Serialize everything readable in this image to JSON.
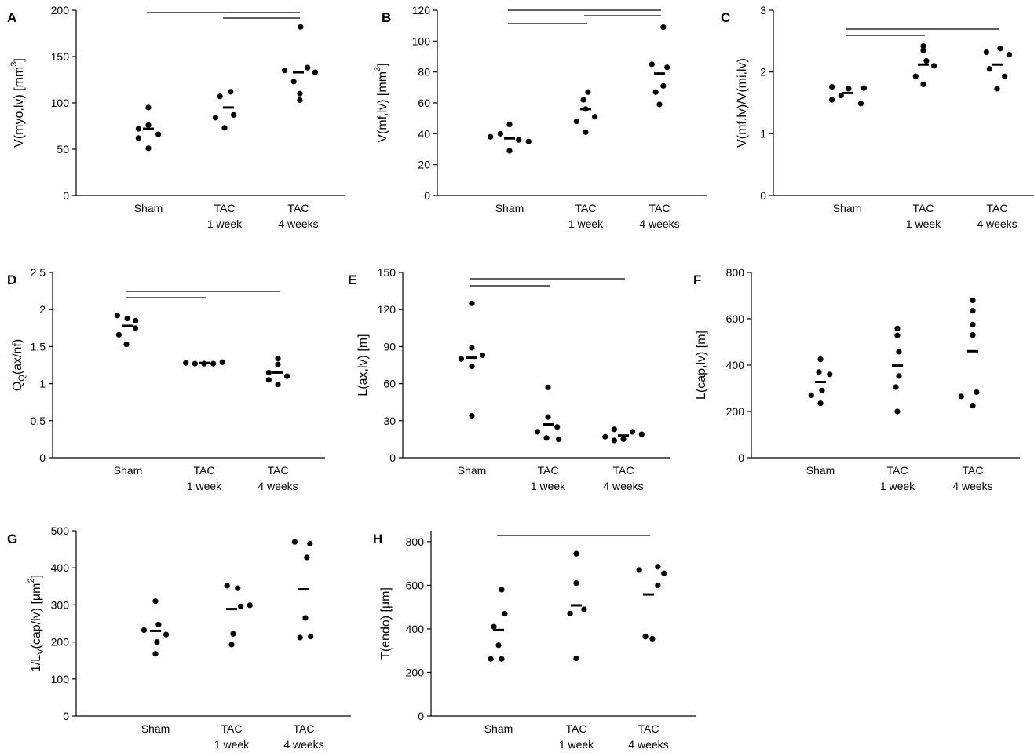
{
  "figure": {
    "categories": [
      [
        "Sham"
      ],
      [
        "TAC",
        "1 week"
      ],
      [
        "TAC",
        "4 weeks"
      ]
    ]
  },
  "chart_data": [
    {
      "type": "scatter",
      "panel": "A",
      "ylabel": [
        {
          "t": "V(myo,lv) [mm"
        },
        {
          "t": "3",
          "sup": true
        },
        {
          "t": "]"
        }
      ],
      "ylim": [
        0,
        200
      ],
      "yticks": [
        "0",
        "50",
        "100",
        "150",
        "200"
      ],
      "series": [
        {
          "values": [
            95,
            76,
            72,
            66,
            62,
            51
          ],
          "mean": 72,
          "x_offsets": [
            0,
            0,
            -0.13,
            0.13,
            -0.13,
            0
          ]
        },
        {
          "values": [
            112,
            107,
            87,
            84,
            73
          ],
          "mean": 95,
          "x_offsets": [
            0.08,
            -0.06,
            0.12,
            -0.12,
            0
          ],
          "mean_offset": 0.05
        },
        {
          "values": [
            182,
            138,
            135,
            133,
            123,
            110,
            103
          ],
          "mean": 133,
          "x_offsets": [
            0.03,
            0.12,
            -0.18,
            0.22,
            -0.06,
            0.02,
            0.02
          ]
        }
      ],
      "significance": [
        [
          0,
          2
        ],
        [
          1,
          2
        ]
      ]
    },
    {
      "type": "scatter",
      "panel": "B",
      "ylabel": [
        {
          "t": "V(mf,lv) [mm"
        },
        {
          "t": "3",
          "sup": true
        },
        {
          "t": "]"
        }
      ],
      "ylim": [
        0,
        120
      ],
      "yticks": [
        "0",
        "20",
        "40",
        "60",
        "80",
        "100",
        "120"
      ],
      "series": [
        {
          "values": [
            46,
            40,
            38,
            36,
            35,
            29
          ],
          "mean": 37,
          "x_offsets": [
            0,
            -0.12,
            -0.25,
            0.12,
            0.25,
            0
          ]
        },
        {
          "values": [
            67,
            62,
            56,
            51,
            48,
            41
          ],
          "mean": 56,
          "x_offsets": [
            0.03,
            -0.03,
            0,
            0.12,
            -0.12,
            0
          ]
        },
        {
          "values": [
            109,
            85,
            83,
            71,
            67,
            59
          ],
          "mean": 79,
          "x_offsets": [
            0.05,
            -0.1,
            0.1,
            0.05,
            -0.05,
            0
          ]
        }
      ],
      "significance": [
        [
          0,
          2
        ],
        [
          1,
          2
        ],
        [
          0,
          1
        ]
      ]
    },
    {
      "type": "scatter",
      "panel": "C",
      "ylabel": [
        {
          "t": "V(mf,lv)/V(mi,lv)"
        }
      ],
      "ylim": [
        0,
        3
      ],
      "yticks": [
        "0",
        "1",
        "2",
        "3"
      ],
      "series": [
        {
          "values": [
            1.76,
            1.74,
            1.73,
            1.62,
            1.55,
            1.49
          ],
          "mean": 1.66,
          "x_offsets": [
            -0.2,
            0.22,
            0.02,
            -0.08,
            -0.2,
            0.18
          ]
        },
        {
          "values": [
            2.42,
            2.35,
            2.18,
            2.1,
            1.93,
            1.8
          ],
          "mean": 2.12,
          "x_offsets": [
            0,
            0,
            0.04,
            0.14,
            -0.1,
            0
          ]
        },
        {
          "values": [
            2.38,
            2.32,
            2.28,
            2.05,
            1.93,
            1.73
          ],
          "mean": 2.12,
          "x_offsets": [
            0.04,
            -0.14,
            0.16,
            -0.1,
            0.1,
            0
          ]
        }
      ],
      "significance": [
        [
          0,
          2
        ],
        [
          0,
          1
        ]
      ]
    },
    {
      "type": "scatter",
      "panel": "D",
      "ylabel": [
        {
          "t": "Q"
        },
        {
          "t": "Q",
          "sub": true
        },
        {
          "t": "(ax/nf)"
        }
      ],
      "ylim": [
        0,
        2.5
      ],
      "yticks": [
        "0",
        "0.5",
        "1",
        "1.5",
        "2",
        "2.5"
      ],
      "series": [
        {
          "values": [
            1.92,
            1.88,
            1.85,
            1.75,
            1.66,
            1.53
          ],
          "mean": 1.78,
          "x_offsets": [
            -0.14,
            -0.01,
            0.1,
            0.1,
            -0.12,
            -0.02
          ]
        },
        {
          "values": [
            1.29,
            1.28,
            1.27,
            1.27,
            1.27
          ],
          "mean": 1.28,
          "x_offsets": [
            0.24,
            -0.24,
            -0.12,
            0.12,
            0
          ]
        },
        {
          "values": [
            1.34,
            1.26,
            1.15,
            1.1,
            1.05,
            0.99
          ],
          "mean": 1.15,
          "x_offsets": [
            0,
            0,
            -0.12,
            0.12,
            -0.12,
            0
          ]
        }
      ],
      "significance": [
        [
          0,
          2
        ],
        [
          0,
          1
        ]
      ]
    },
    {
      "type": "scatter",
      "panel": "E",
      "ylabel": [
        {
          "t": "L(ax,lv) [m]"
        }
      ],
      "ylim": [
        0,
        150
      ],
      "yticks": [
        "0",
        "30",
        "60",
        "90",
        "120",
        "150"
      ],
      "series": [
        {
          "values": [
            125,
            89,
            83,
            80,
            74,
            34
          ],
          "mean": 81,
          "x_offsets": [
            0,
            0,
            0.14,
            -0.14,
            0,
            0
          ]
        },
        {
          "values": [
            57,
            33,
            25,
            21,
            16,
            15
          ],
          "mean": 27,
          "x_offsets": [
            0,
            0,
            0.12,
            -0.14,
            -0.02,
            0.14
          ]
        },
        {
          "values": [
            23,
            21,
            19,
            17,
            15,
            14
          ],
          "mean": 18,
          "x_offsets": [
            -0.12,
            0.12,
            0.24,
            -0.24,
            0,
            -0.12
          ]
        }
      ],
      "significance": [
        [
          0,
          2
        ],
        [
          0,
          1
        ]
      ]
    },
    {
      "type": "scatter",
      "panel": "F",
      "ylabel": [
        {
          "t": "L(cap,lv) [m]"
        }
      ],
      "ylim": [
        0,
        800
      ],
      "yticks": [
        "0",
        "200",
        "400",
        "600",
        "800"
      ],
      "series": [
        {
          "values": [
            425,
            370,
            360,
            290,
            270,
            235
          ],
          "mean": 327,
          "x_offsets": [
            0,
            -0.02,
            0.12,
            0.02,
            -0.12,
            0
          ]
        },
        {
          "values": [
            558,
            528,
            458,
            353,
            305,
            200
          ],
          "mean": 398,
          "x_offsets": [
            0,
            0,
            0.02,
            0.02,
            -0.02,
            0
          ]
        },
        {
          "values": [
            680,
            635,
            575,
            530,
            283,
            265,
            225
          ],
          "mean": 460,
          "x_offsets": [
            0,
            0,
            0,
            0,
            0.05,
            -0.15,
            0
          ]
        }
      ],
      "significance": []
    },
    {
      "type": "scatter",
      "panel": "G",
      "ylabel": [
        {
          "t": "1/L"
        },
        {
          "t": "V",
          "sub": true
        },
        {
          "t": "(cap/lv) [µm"
        },
        {
          "t": "2",
          "sup": true
        },
        {
          "t": "]"
        }
      ],
      "ylim": [
        0,
        500
      ],
      "yticks": [
        "0",
        "100",
        "200",
        "300",
        "400",
        "500"
      ],
      "series": [
        {
          "values": [
            310,
            247,
            232,
            220,
            200,
            168
          ],
          "mean": 230,
          "x_offsets": [
            0,
            0.04,
            -0.15,
            0.14,
            0.02,
            0
          ]
        },
        {
          "values": [
            352,
            345,
            299,
            296,
            222,
            193
          ],
          "mean": 289,
          "x_offsets": [
            -0.06,
            0.08,
            0.24,
            0.12,
            0.02,
            0
          ]
        },
        {
          "values": [
            470,
            465,
            428,
            265,
            215,
            212
          ],
          "mean": 342,
          "x_offsets": [
            -0.12,
            0.08,
            0.04,
            0.02,
            0.09,
            -0.05
          ]
        }
      ],
      "significance": []
    },
    {
      "type": "scatter",
      "panel": "H",
      "ylabel": [
        {
          "t": "T(endo) [µm]"
        }
      ],
      "ylim": [
        0,
        850
      ],
      "yticks": [
        "0",
        "200",
        "400",
        "600",
        "800"
      ],
      "series": [
        {
          "values": [
            580,
            470,
            410,
            325,
            262,
            262
          ],
          "mean": 395,
          "x_offsets": [
            0.04,
            0.08,
            -0.06,
            0,
            -0.1,
            0.04
          ]
        },
        {
          "values": [
            745,
            610,
            490,
            470,
            265
          ],
          "mean": 508,
          "x_offsets": [
            0,
            0,
            0.1,
            -0.08,
            0
          ]
        },
        {
          "values": [
            685,
            670,
            655,
            600,
            365,
            355
          ],
          "mean": 558,
          "x_offsets": [
            0.12,
            -0.12,
            0.2,
            0.12,
            -0.04,
            0.05
          ]
        }
      ],
      "significance": [
        [
          0,
          2
        ]
      ]
    }
  ]
}
